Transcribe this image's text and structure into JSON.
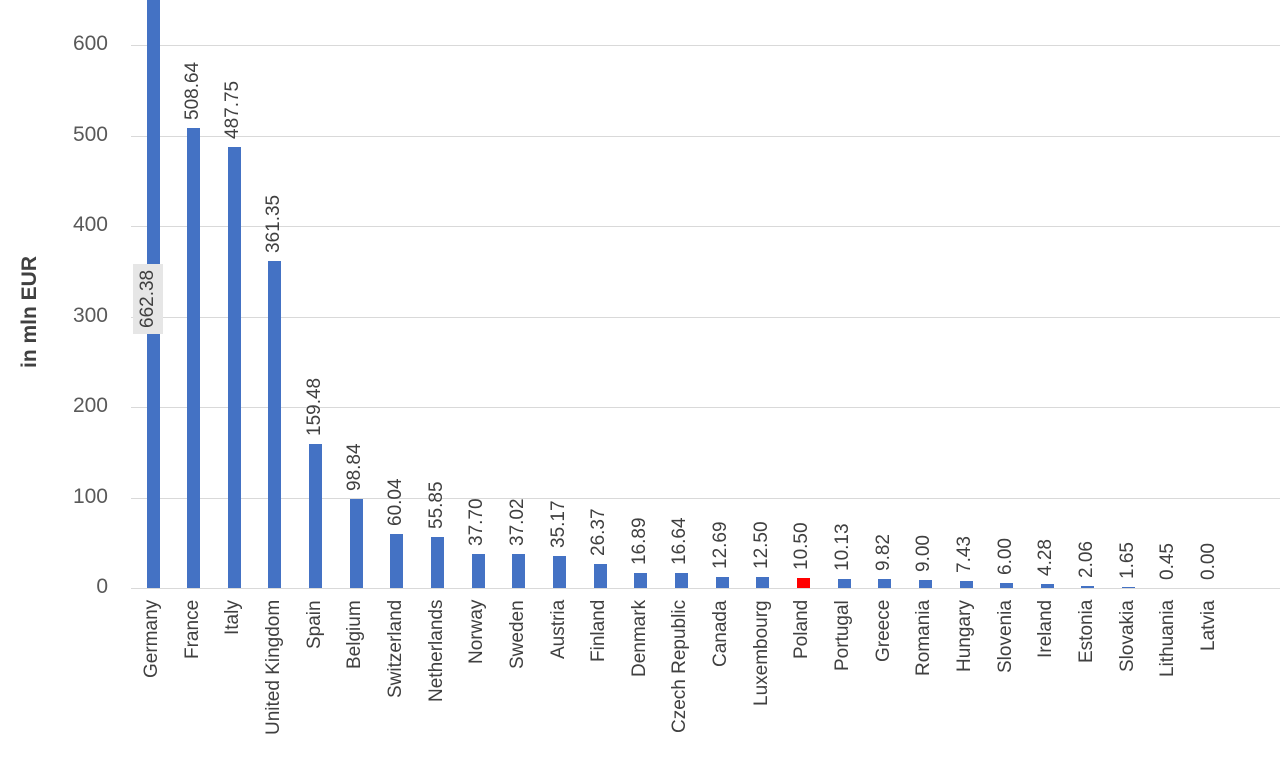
{
  "chart_data": {
    "type": "bar",
    "title": "",
    "xlabel": "",
    "ylabel": "in mln EUR",
    "ylim": [
      0,
      650
    ],
    "yticks": [
      0,
      100,
      200,
      300,
      400,
      500,
      600
    ],
    "grid": true,
    "legend": null,
    "categories": [
      "Germany",
      "France",
      "Italy",
      "United Kingdom",
      "Spain",
      "Belgium",
      "Switzerland",
      "Netherlands",
      "Norway",
      "Sweden",
      "Austria",
      "Finland",
      "Denmark",
      "Czech Republic",
      "Canada",
      "Luxembourg",
      "Poland",
      "Portugal",
      "Greece",
      "Romania",
      "Hungary",
      "Slovenia",
      "Ireland",
      "Estonia",
      "Slovakia",
      "Lithuania",
      "Latvia"
    ],
    "values": [
      662.38,
      508.64,
      487.75,
      361.35,
      159.48,
      98.84,
      60.04,
      55.85,
      37.7,
      37.02,
      35.17,
      26.37,
      16.89,
      16.64,
      12.69,
      12.5,
      10.5,
      10.13,
      9.82,
      9.0,
      7.43,
      6.0,
      4.28,
      2.06,
      1.65,
      0.45,
      0.0
    ],
    "value_labels": [
      "662.38",
      "508.64",
      "487.75",
      "361.35",
      "159.48",
      "98.84",
      "60.04",
      "55.85",
      "37.70",
      "37.02",
      "35.17",
      "26.37",
      "16.89",
      "16.64",
      "12.69",
      "12.50",
      "10.50",
      "10.13",
      "9.82",
      "9.00",
      "7.43",
      "6.00",
      "4.28",
      "2.06",
      "1.65",
      "0.45",
      "0.00"
    ],
    "highlight": {
      "category": "Poland",
      "color": "#ff0000"
    },
    "bar_color": "#4472c4",
    "annotations": [
      "Germany bar truncated at axis top; value label 662.38 shown in grey box inside bar"
    ]
  }
}
